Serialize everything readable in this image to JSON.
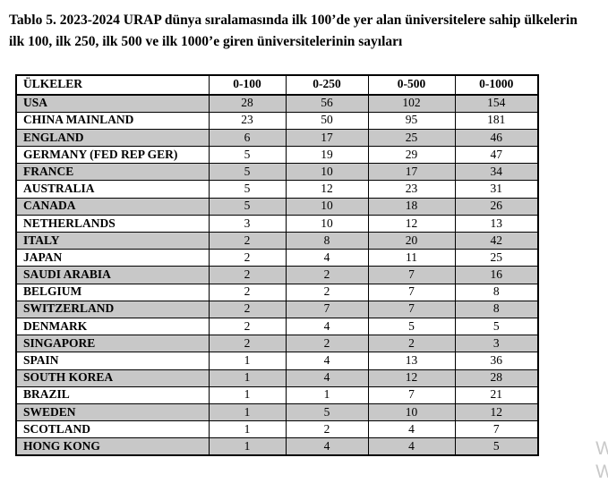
{
  "title": {
    "line1": "Tablo 5. 2023-2024 URAP dünya sıralamasında ilk 100’de yer alan üniversitelere sahip ülkelerin",
    "line2": "ilk 100, ilk 250, ilk 500 ve ilk 1000’e giren üniversitelerinin sayıları"
  },
  "table": {
    "columns": [
      "ÜLKELER",
      "0-100",
      "0-250",
      "0-500",
      "0-1000"
    ],
    "rows": [
      {
        "country": "USA",
        "values": [
          "28",
          "56",
          "102",
          "154"
        ]
      },
      {
        "country": "CHINA MAINLAND",
        "values": [
          "23",
          "50",
          "95",
          "181"
        ]
      },
      {
        "country": "ENGLAND",
        "values": [
          "6",
          "17",
          "25",
          "46"
        ]
      },
      {
        "country": "GERMANY (FED REP GER)",
        "values": [
          "5",
          "19",
          "29",
          "47"
        ]
      },
      {
        "country": "FRANCE",
        "values": [
          "5",
          "10",
          "17",
          "34"
        ]
      },
      {
        "country": "AUSTRALIA",
        "values": [
          "5",
          "12",
          "23",
          "31"
        ]
      },
      {
        "country": "CANADA",
        "values": [
          "5",
          "10",
          "18",
          "26"
        ]
      },
      {
        "country": "NETHERLANDS",
        "values": [
          "3",
          "10",
          "12",
          "13"
        ]
      },
      {
        "country": "ITALY",
        "values": [
          "2",
          "8",
          "20",
          "42"
        ]
      },
      {
        "country": "JAPAN",
        "values": [
          "2",
          "4",
          "11",
          "25"
        ]
      },
      {
        "country": "SAUDI ARABIA",
        "values": [
          "2",
          "2",
          "7",
          "16"
        ]
      },
      {
        "country": "BELGIUM",
        "values": [
          "2",
          "2",
          "7",
          "8"
        ]
      },
      {
        "country": "SWITZERLAND",
        "values": [
          "2",
          "7",
          "7",
          "8"
        ]
      },
      {
        "country": "DENMARK",
        "values": [
          "2",
          "4",
          "5",
          "5"
        ]
      },
      {
        "country": "SINGAPORE",
        "values": [
          "2",
          "2",
          "2",
          "3"
        ]
      },
      {
        "country": "SPAIN",
        "values": [
          "1",
          "4",
          "13",
          "36"
        ]
      },
      {
        "country": "SOUTH KOREA",
        "values": [
          "1",
          "4",
          "12",
          "28"
        ]
      },
      {
        "country": "BRAZIL",
        "values": [
          "1",
          "1",
          "7",
          "21"
        ]
      },
      {
        "country": "SWEDEN",
        "values": [
          "1",
          "5",
          "10",
          "12"
        ]
      },
      {
        "country": "SCOTLAND",
        "values": [
          "1",
          "2",
          "4",
          "7"
        ]
      },
      {
        "country": "HONG KONG",
        "values": [
          "1",
          "4",
          "4",
          "5"
        ]
      }
    ]
  },
  "watermark": {
    "line1": "W",
    "line2": "W"
  },
  "colors": {
    "row_shade": "#c8c8c8",
    "border": "#000000",
    "watermark": "#c9c9c9",
    "text": "#000000"
  }
}
